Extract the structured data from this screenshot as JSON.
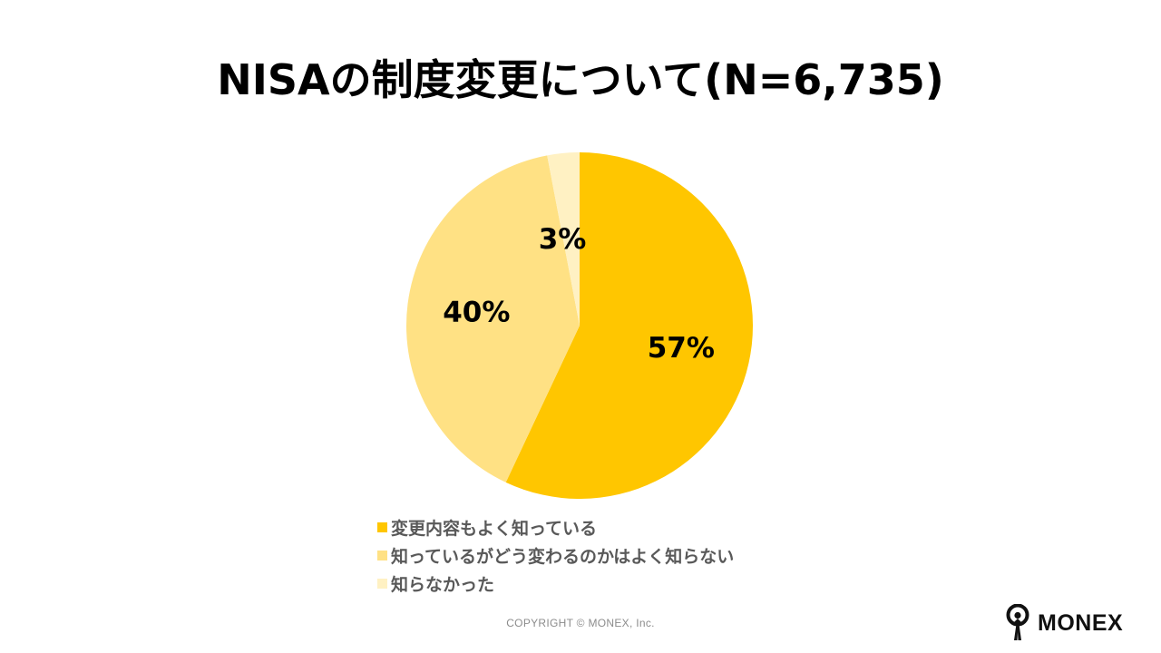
{
  "title": "NISAの制度変更について(N=6,735)",
  "chart_data": {
    "type": "pie",
    "title": "NISAの制度変更について(N=6,735)",
    "start_angle": "12 o'clock",
    "direction": "clockwise",
    "slices": [
      {
        "label": "変更内容もよく知っている",
        "value": 57,
        "display": "57%",
        "color": "#FFC600"
      },
      {
        "label": "知っているがどう変わるのかはよく知らない",
        "value": 40,
        "display": "40%",
        "color": "#FFE184"
      },
      {
        "label": "知らなかった",
        "value": 3,
        "display": "3%",
        "color": "#FFF1C3"
      }
    ],
    "legend_position": "bottom"
  },
  "footer": {
    "copyright": "COPYRIGHT © MONEX, Inc.",
    "brand": "MONEX",
    "brand_icon": "monex-person-icon"
  }
}
